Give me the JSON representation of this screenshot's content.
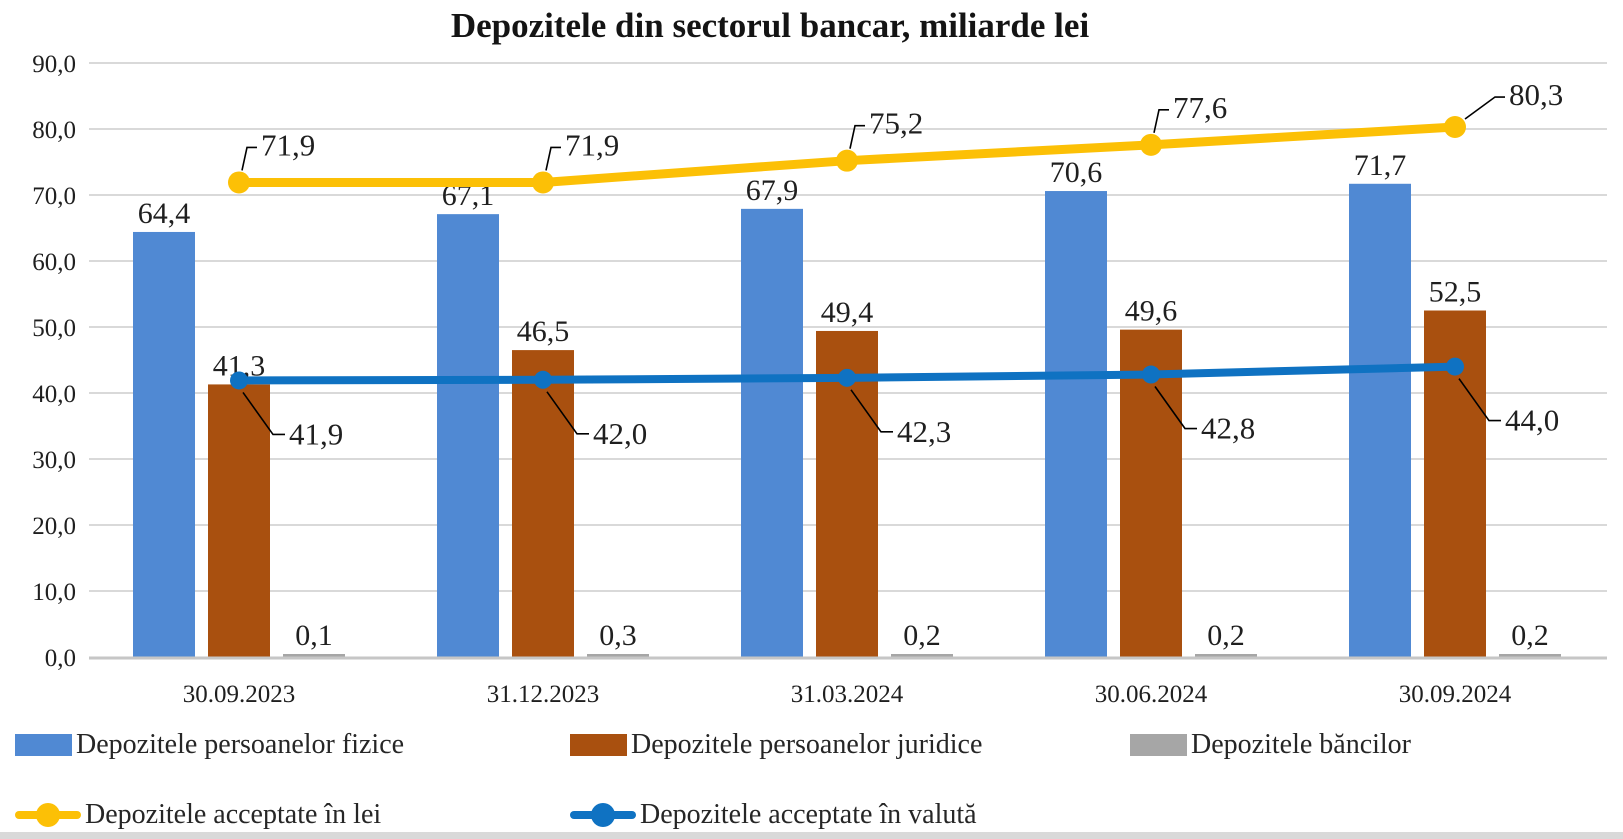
{
  "chart_data": {
    "type": "bar",
    "subtype": "grouped-bars-with-line-overlays",
    "title": "Depozitele din sectorul bancar, miliarde lei",
    "categories": [
      "30.09.2023",
      "31.12.2023",
      "31.03.2024",
      "30.06.2024",
      "30.09.2024"
    ],
    "series": [
      {
        "name": "Depozitele persoanelor fizice",
        "type": "bar",
        "color": "#5089D3",
        "values": [
          64.4,
          67.1,
          67.9,
          70.6,
          71.7
        ]
      },
      {
        "name": "Depozitele persoanelor juridice",
        "type": "bar",
        "color": "#A9500F",
        "values": [
          41.3,
          46.5,
          49.4,
          49.6,
          52.5
        ]
      },
      {
        "name": "Depozitele băncilor",
        "type": "bar",
        "color": "#A6A6A6",
        "values": [
          0.1,
          0.3,
          0.2,
          0.2,
          0.2
        ]
      },
      {
        "name": "Depozitele acceptate în lei",
        "type": "line",
        "color": "#FCC006",
        "values": [
          71.9,
          71.9,
          75.2,
          77.6,
          80.3
        ]
      },
      {
        "name": "Depozitele acceptate în valută",
        "type": "line",
        "color": "#0F72C2",
        "values": [
          41.9,
          42.0,
          42.3,
          42.8,
          44.0
        ]
      }
    ],
    "ylim": [
      0,
      90
    ],
    "ytick_step": 10,
    "grid": true,
    "legend_position": "bottom",
    "number_format": "comma-decimal-one-digit",
    "colors": {
      "gridline": "#D9D9D9",
      "axis_line": "#C6C6C6",
      "text": "#1F1F1F",
      "callout_leader": "#000000"
    }
  }
}
